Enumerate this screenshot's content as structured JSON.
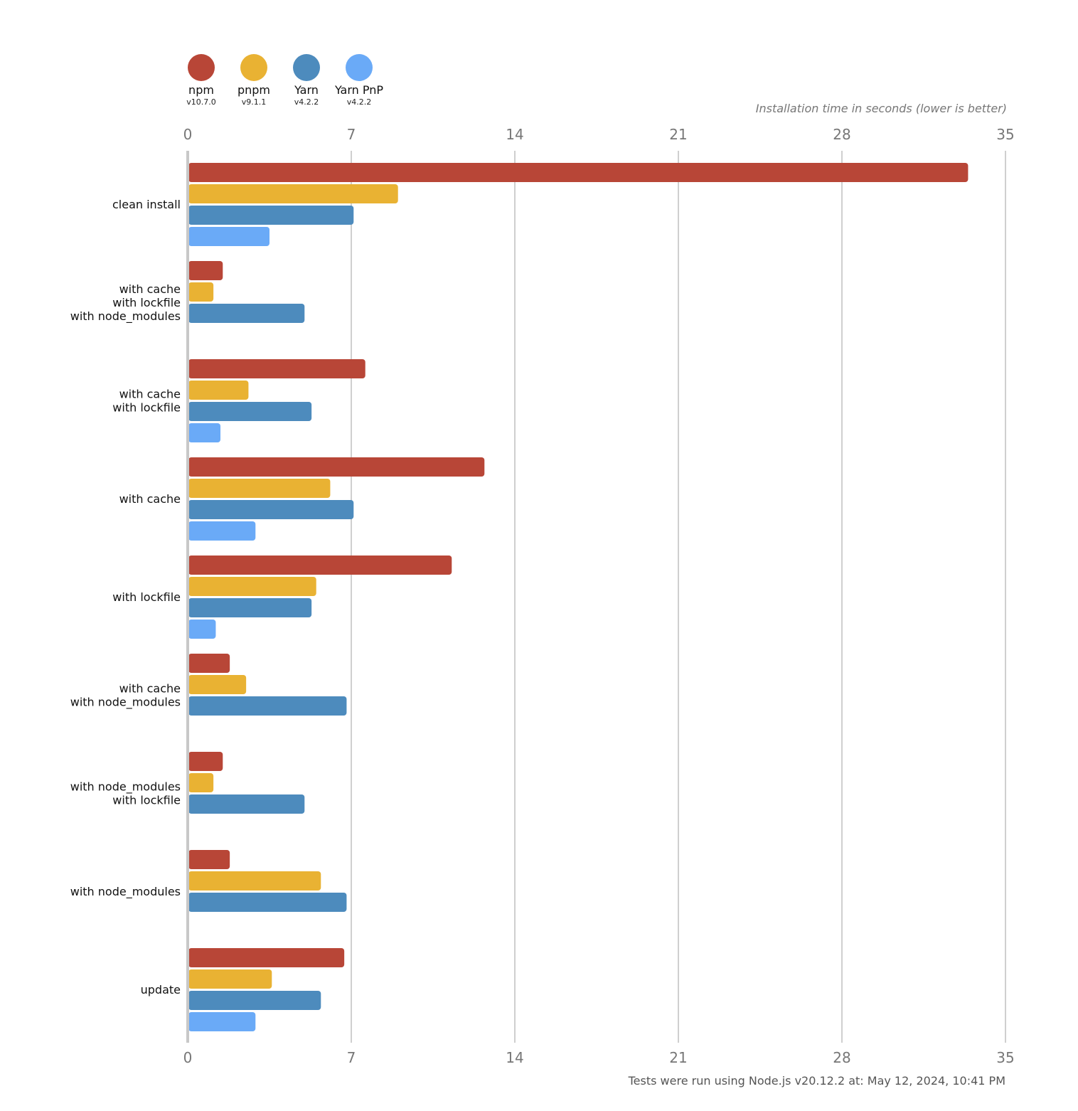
{
  "legend": [
    {
      "name": "npm",
      "version": "v10.7.0",
      "color": "#b84637"
    },
    {
      "name": "pnpm",
      "version": "v9.1.1",
      "color": "#e9b233"
    },
    {
      "name": "Yarn",
      "version": "v4.2.2",
      "color": "#4d8bbd"
    },
    {
      "name": "Yarn PnP",
      "version": "v4.2.2",
      "color": "#6aaaf7"
    }
  ],
  "axis_title": "Installation time in seconds (lower is better)",
  "footnote": "Tests were run using Node.js v20.12.2 at: May 12, 2024, 10:41 PM",
  "chart_data": {
    "type": "bar",
    "orientation": "horizontal",
    "xlabel": "Installation time in seconds (lower is better)",
    "xlim": [
      0,
      35
    ],
    "xticks": [
      0,
      7,
      14,
      21,
      28,
      35
    ],
    "grid": true,
    "legend_position": "top-left",
    "categories": [
      [
        "clean install"
      ],
      [
        "with cache",
        "with lockfile",
        "with node_modules"
      ],
      [
        "with cache",
        "with lockfile"
      ],
      [
        "with cache"
      ],
      [
        "with lockfile"
      ],
      [
        "with cache",
        "with node_modules"
      ],
      [
        "with node_modules",
        "with lockfile"
      ],
      [
        "with node_modules"
      ],
      [
        "update"
      ]
    ],
    "series": [
      {
        "name": "npm",
        "color": "#b84637",
        "values": [
          33.4,
          1.5,
          7.6,
          12.7,
          11.3,
          1.8,
          1.5,
          1.8,
          6.7
        ]
      },
      {
        "name": "pnpm",
        "color": "#e9b233",
        "values": [
          9.0,
          1.1,
          2.6,
          6.1,
          5.5,
          2.5,
          1.1,
          5.7,
          3.6
        ]
      },
      {
        "name": "Yarn",
        "color": "#4d8bbd",
        "values": [
          7.1,
          5.0,
          5.3,
          7.1,
          5.3,
          6.8,
          5.0,
          6.8,
          5.7
        ]
      },
      {
        "name": "Yarn PnP",
        "color": "#6aaaf7",
        "values": [
          3.5,
          null,
          1.4,
          2.9,
          1.2,
          null,
          null,
          null,
          2.9
        ]
      }
    ]
  }
}
